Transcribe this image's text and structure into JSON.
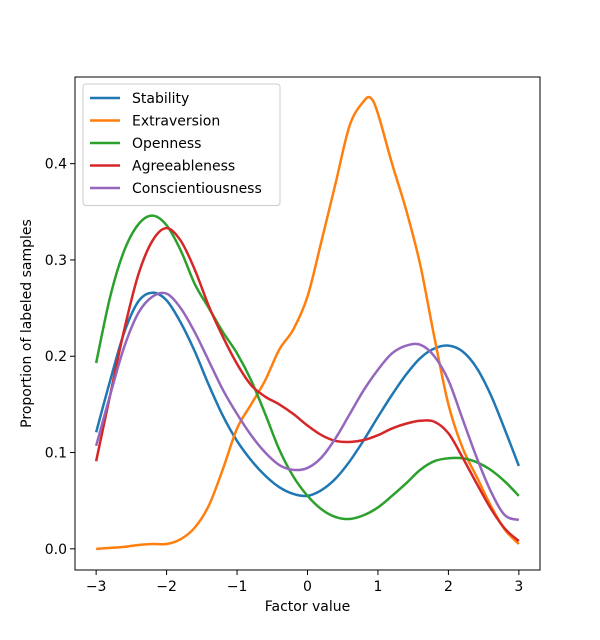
{
  "chart_data": {
    "type": "line",
    "title": "",
    "xlabel": "Factor value",
    "ylabel": "Proportion of labeled samples",
    "xlim": [
      -3.3,
      3.3
    ],
    "ylim": [
      -0.022,
      0.49
    ],
    "xticks": [
      -3,
      -2,
      -1,
      0,
      1,
      2,
      3
    ],
    "xtick_labels": [
      "−3",
      "−2",
      "−1",
      "0",
      "1",
      "2",
      "3"
    ],
    "yticks": [
      0.0,
      0.1,
      0.2,
      0.3,
      0.4
    ],
    "ytick_labels": [
      "0.0",
      "0.1",
      "0.2",
      "0.3",
      "0.4"
    ],
    "grid": false,
    "legend_position": "top-left",
    "series": [
      {
        "name": "Stability",
        "color": "#1f77b4",
        "points": [
          [
            -3,
            0.121
          ],
          [
            -2.8,
            0.175
          ],
          [
            -2.6,
            0.225
          ],
          [
            -2.4,
            0.257
          ],
          [
            -2.2,
            0.266
          ],
          [
            -2.0,
            0.258
          ],
          [
            -1.8,
            0.235
          ],
          [
            -1.6,
            0.205
          ],
          [
            -1.4,
            0.17
          ],
          [
            -1.2,
            0.138
          ],
          [
            -1.0,
            0.112
          ],
          [
            -0.8,
            0.092
          ],
          [
            -0.6,
            0.076
          ],
          [
            -0.4,
            0.064
          ],
          [
            -0.2,
            0.057
          ],
          [
            0.0,
            0.055
          ],
          [
            0.2,
            0.061
          ],
          [
            0.4,
            0.073
          ],
          [
            0.6,
            0.091
          ],
          [
            0.8,
            0.113
          ],
          [
            1.0,
            0.137
          ],
          [
            1.2,
            0.16
          ],
          [
            1.4,
            0.181
          ],
          [
            1.6,
            0.198
          ],
          [
            1.8,
            0.208
          ],
          [
            2.0,
            0.211
          ],
          [
            2.2,
            0.205
          ],
          [
            2.4,
            0.188
          ],
          [
            2.6,
            0.16
          ],
          [
            2.8,
            0.124
          ],
          [
            3.0,
            0.086
          ]
        ]
      },
      {
        "name": "Extraversion",
        "color": "#ff7f0e",
        "points": [
          [
            -3,
            0.0
          ],
          [
            -2.8,
            0.001
          ],
          [
            -2.6,
            0.002
          ],
          [
            -2.4,
            0.004
          ],
          [
            -2.2,
            0.005
          ],
          [
            -2.0,
            0.005
          ],
          [
            -1.8,
            0.01
          ],
          [
            -1.6,
            0.022
          ],
          [
            -1.4,
            0.045
          ],
          [
            -1.2,
            0.083
          ],
          [
            -1.0,
            0.125
          ],
          [
            -0.8,
            0.15
          ],
          [
            -0.6,
            0.175
          ],
          [
            -0.4,
            0.207
          ],
          [
            -0.2,
            0.228
          ],
          [
            0.0,
            0.262
          ],
          [
            0.2,
            0.32
          ],
          [
            0.4,
            0.38
          ],
          [
            0.6,
            0.44
          ],
          [
            0.8,
            0.465
          ],
          [
            0.9,
            0.468
          ],
          [
            1.0,
            0.452
          ],
          [
            1.2,
            0.4
          ],
          [
            1.4,
            0.352
          ],
          [
            1.6,
            0.295
          ],
          [
            1.8,
            0.22
          ],
          [
            2.0,
            0.15
          ],
          [
            2.2,
            0.105
          ],
          [
            2.4,
            0.075
          ],
          [
            2.6,
            0.045
          ],
          [
            2.8,
            0.02
          ],
          [
            3.0,
            0.005
          ]
        ]
      },
      {
        "name": "Openness",
        "color": "#2ca02c",
        "points": [
          [
            -3,
            0.193
          ],
          [
            -2.8,
            0.262
          ],
          [
            -2.6,
            0.31
          ],
          [
            -2.4,
            0.337
          ],
          [
            -2.2,
            0.346
          ],
          [
            -2.0,
            0.336
          ],
          [
            -1.8,
            0.31
          ],
          [
            -1.6,
            0.275
          ],
          [
            -1.4,
            0.25
          ],
          [
            -1.2,
            0.225
          ],
          [
            -1.0,
            0.203
          ],
          [
            -0.8,
            0.175
          ],
          [
            -0.6,
            0.14
          ],
          [
            -0.4,
            0.103
          ],
          [
            -0.2,
            0.075
          ],
          [
            0.0,
            0.055
          ],
          [
            0.2,
            0.041
          ],
          [
            0.4,
            0.033
          ],
          [
            0.6,
            0.031
          ],
          [
            0.8,
            0.035
          ],
          [
            1.0,
            0.043
          ],
          [
            1.2,
            0.055
          ],
          [
            1.4,
            0.068
          ],
          [
            1.6,
            0.082
          ],
          [
            1.8,
            0.091
          ],
          [
            2.0,
            0.094
          ],
          [
            2.2,
            0.094
          ],
          [
            2.4,
            0.09
          ],
          [
            2.6,
            0.082
          ],
          [
            2.8,
            0.07
          ],
          [
            3.0,
            0.055
          ]
        ]
      },
      {
        "name": "Agreeableness",
        "color": "#d62728",
        "points": [
          [
            -3,
            0.091
          ],
          [
            -2.8,
            0.16
          ],
          [
            -2.6,
            0.228
          ],
          [
            -2.4,
            0.285
          ],
          [
            -2.2,
            0.32
          ],
          [
            -2.0,
            0.333
          ],
          [
            -1.8,
            0.32
          ],
          [
            -1.6,
            0.29
          ],
          [
            -1.4,
            0.252
          ],
          [
            -1.2,
            0.22
          ],
          [
            -1.0,
            0.192
          ],
          [
            -0.8,
            0.17
          ],
          [
            -0.6,
            0.158
          ],
          [
            -0.4,
            0.15
          ],
          [
            -0.2,
            0.14
          ],
          [
            0.0,
            0.128
          ],
          [
            0.2,
            0.118
          ],
          [
            0.4,
            0.112
          ],
          [
            0.6,
            0.111
          ],
          [
            0.8,
            0.113
          ],
          [
            1.0,
            0.118
          ],
          [
            1.2,
            0.125
          ],
          [
            1.4,
            0.13
          ],
          [
            1.6,
            0.133
          ],
          [
            1.8,
            0.132
          ],
          [
            2.0,
            0.12
          ],
          [
            2.2,
            0.095
          ],
          [
            2.4,
            0.068
          ],
          [
            2.6,
            0.042
          ],
          [
            2.8,
            0.021
          ],
          [
            3.0,
            0.008
          ]
        ]
      },
      {
        "name": "Conscientiousness",
        "color": "#9467bd",
        "points": [
          [
            -3,
            0.107
          ],
          [
            -2.8,
            0.16
          ],
          [
            -2.6,
            0.21
          ],
          [
            -2.4,
            0.245
          ],
          [
            -2.2,
            0.262
          ],
          [
            -2.0,
            0.265
          ],
          [
            -1.8,
            0.25
          ],
          [
            -1.6,
            0.225
          ],
          [
            -1.4,
            0.195
          ],
          [
            -1.2,
            0.165
          ],
          [
            -1.0,
            0.14
          ],
          [
            -0.8,
            0.118
          ],
          [
            -0.6,
            0.1
          ],
          [
            -0.4,
            0.087
          ],
          [
            -0.2,
            0.082
          ],
          [
            0.0,
            0.084
          ],
          [
            0.2,
            0.095
          ],
          [
            0.4,
            0.115
          ],
          [
            0.6,
            0.14
          ],
          [
            0.8,
            0.165
          ],
          [
            1.0,
            0.186
          ],
          [
            1.2,
            0.203
          ],
          [
            1.4,
            0.211
          ],
          [
            1.6,
            0.212
          ],
          [
            1.8,
            0.2
          ],
          [
            2.0,
            0.175
          ],
          [
            2.2,
            0.135
          ],
          [
            2.4,
            0.095
          ],
          [
            2.6,
            0.06
          ],
          [
            2.8,
            0.035
          ],
          [
            3.0,
            0.03
          ]
        ]
      }
    ]
  }
}
